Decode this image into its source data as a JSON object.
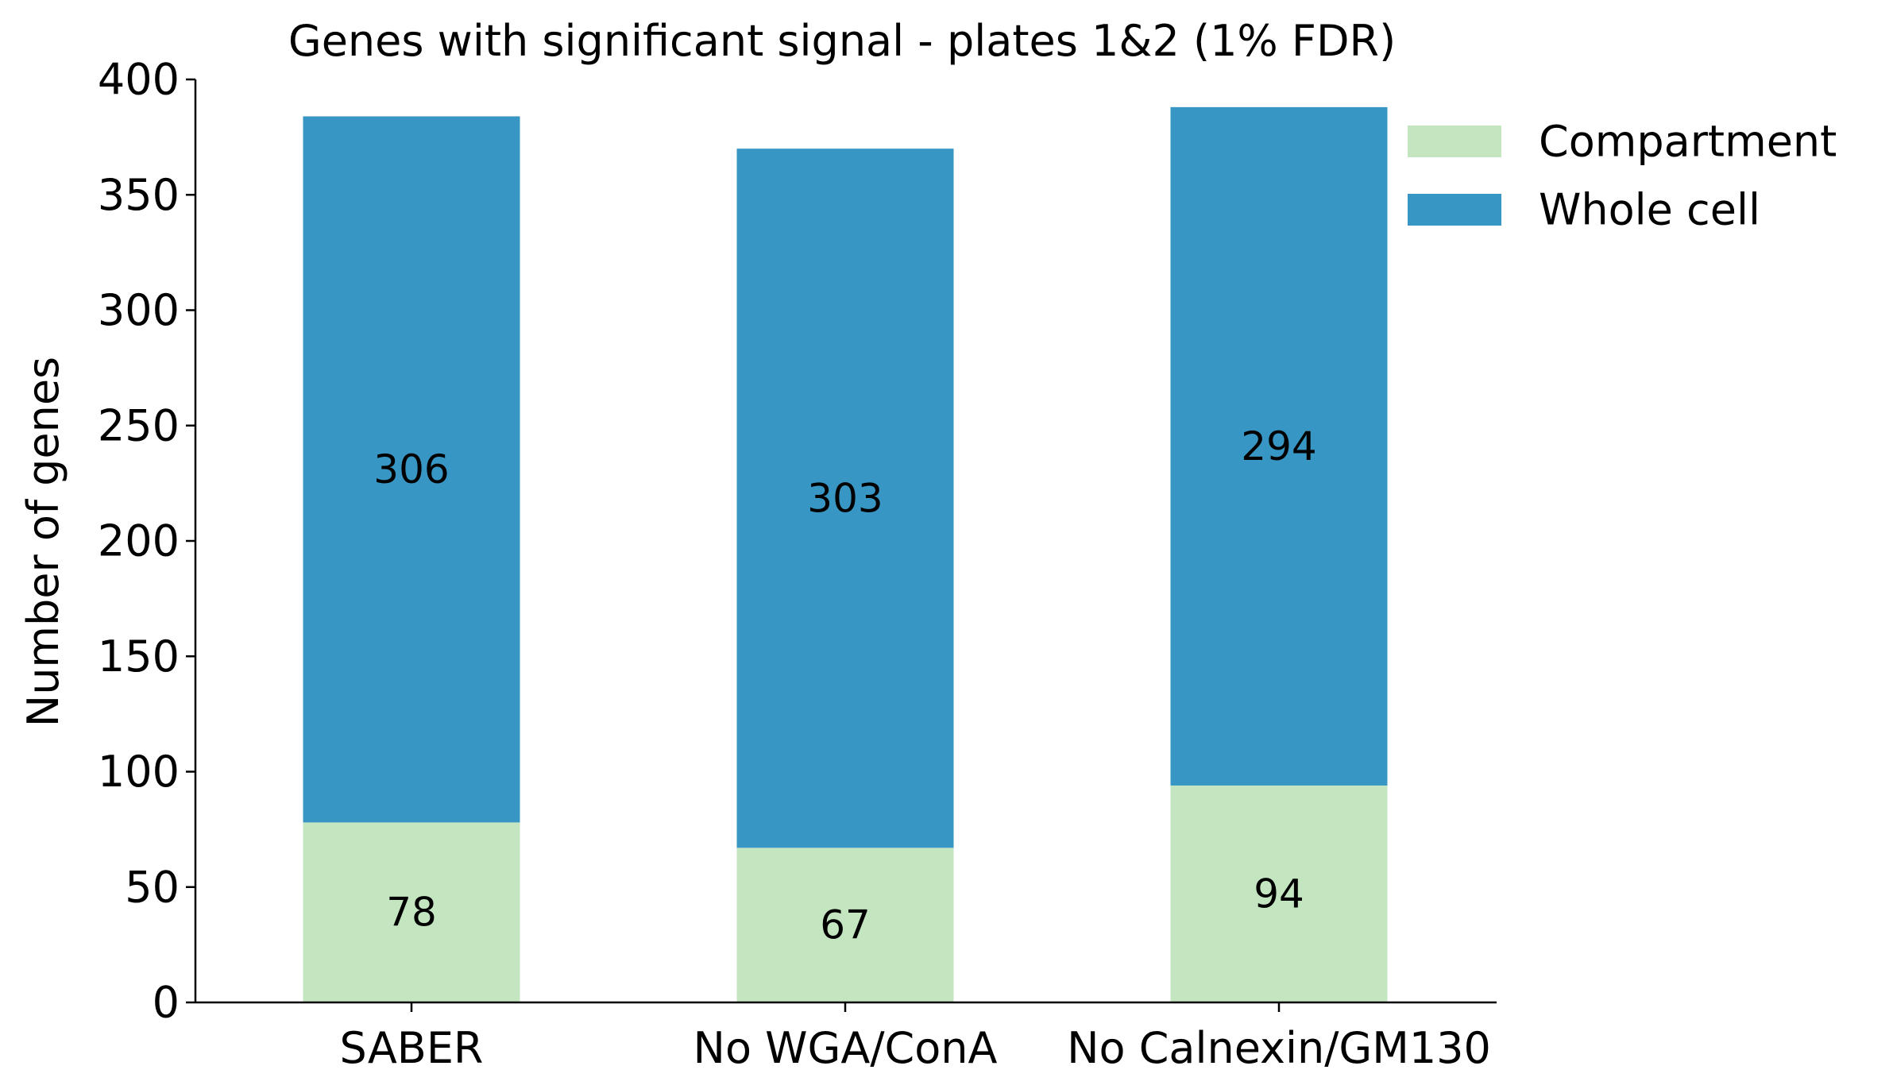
{
  "chart_data": {
    "type": "bar",
    "stacked": true,
    "title": "Genes with significant signal - plates 1&2 (1% FDR)",
    "xlabel": "",
    "ylabel": "Number of genes",
    "categories": [
      "SABER",
      "No WGA/ConA",
      "No Calnexin/GM130"
    ],
    "series": [
      {
        "name": "Compartment",
        "values": [
          78,
          67,
          94
        ],
        "color": "#c3e6c1"
      },
      {
        "name": "Whole cell",
        "values": [
          306,
          303,
          294
        ],
        "color": "#3796c3"
      }
    ],
    "ylim": [
      0,
      400
    ],
    "yticks": [
      0,
      50,
      100,
      150,
      200,
      250,
      300,
      350,
      400
    ],
    "grid": false,
    "legend_position": "top-right"
  }
}
